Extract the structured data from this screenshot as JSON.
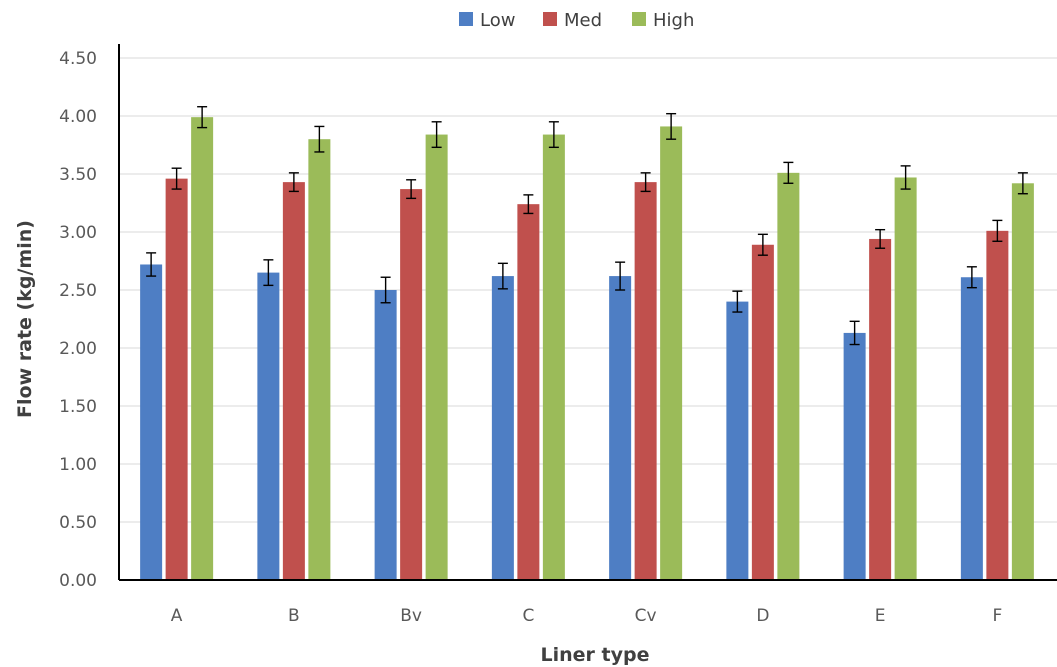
{
  "chart_data": {
    "type": "bar",
    "title": "",
    "xlabel": "Liner type",
    "ylabel": "Flow rate (kg/min)",
    "ylim": [
      0,
      4.5
    ],
    "y_ticks": [
      "0.00",
      "0.50",
      "1.00",
      "1.50",
      "2.00",
      "2.50",
      "3.00",
      "3.50",
      "4.00",
      "4.50"
    ],
    "grid": true,
    "legend_position": "top",
    "categories": [
      "A",
      "B",
      "Bv",
      "C",
      "Cv",
      "D",
      "E",
      "F"
    ],
    "series": [
      {
        "name": "Low",
        "color": "#4e7ec4",
        "values": [
          2.72,
          2.65,
          2.5,
          2.62,
          2.62,
          2.4,
          2.13,
          2.61
        ],
        "errors": [
          0.1,
          0.11,
          0.11,
          0.11,
          0.12,
          0.09,
          0.1,
          0.09
        ]
      },
      {
        "name": "Med",
        "color": "#c0504d",
        "values": [
          3.46,
          3.43,
          3.37,
          3.24,
          3.43,
          2.89,
          2.94,
          3.01
        ],
        "errors": [
          0.09,
          0.08,
          0.08,
          0.08,
          0.08,
          0.09,
          0.08,
          0.09
        ]
      },
      {
        "name": "High",
        "color": "#9bbb59",
        "values": [
          3.99,
          3.8,
          3.84,
          3.84,
          3.91,
          3.51,
          3.47,
          3.42
        ],
        "errors": [
          0.09,
          0.11,
          0.11,
          0.11,
          0.11,
          0.09,
          0.1,
          0.09
        ]
      }
    ]
  }
}
